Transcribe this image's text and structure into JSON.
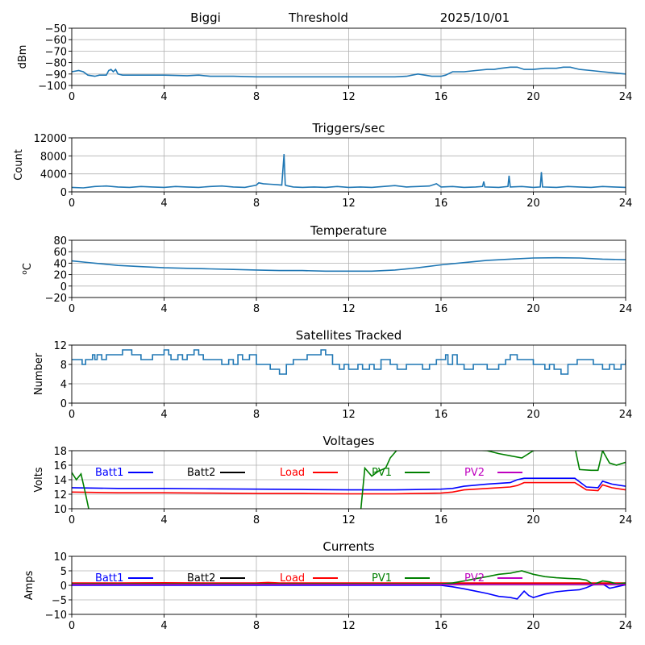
{
  "header": {
    "station": "Biggi",
    "mode": "Threshold",
    "date": "2025/10/01"
  },
  "colors": {
    "series_default": "#1f77b4",
    "Batt1": "#0000ff",
    "Batt2": "#000000",
    "Load": "#ff0000",
    "PV1": "#008000",
    "PV2": "#bf00bf",
    "grid": "#b0b0b0"
  },
  "chart_data": [
    {
      "id": "signal",
      "type": "line",
      "title": "",
      "xlabel": "",
      "ylabel": "dBm",
      "xlim": [
        0,
        24
      ],
      "ylim": [
        -100,
        -50
      ],
      "xticks": [
        0,
        4,
        8,
        12,
        16,
        20,
        24
      ],
      "yticks": [
        -100,
        -90,
        -80,
        -70,
        -60,
        -50
      ],
      "ytick_labels": [
        "−100",
        "−90",
        "−80",
        "−70",
        "−60",
        "−50"
      ],
      "grid": true,
      "series": [
        {
          "name": "dBm",
          "color": "#1f77b4",
          "x": [
            0,
            0.3,
            0.5,
            0.7,
            1.0,
            1.2,
            1.5,
            1.6,
            1.7,
            1.8,
            1.9,
            2.0,
            2.2,
            2.5,
            3,
            4,
            5,
            5.5,
            6,
            7,
            8,
            9,
            10,
            11,
            12,
            13,
            14,
            14.5,
            15,
            15.3,
            15.6,
            16,
            16.2,
            16.5,
            17,
            17.5,
            18,
            18.3,
            18.6,
            19,
            19.3,
            19.6,
            20,
            20.5,
            21,
            21.3,
            21.6,
            22,
            22.5,
            23,
            23.5,
            24
          ],
          "y": [
            -88,
            -87,
            -88,
            -91,
            -92,
            -91,
            -91,
            -87,
            -86,
            -88,
            -86,
            -90,
            -91,
            -91,
            -91,
            -91,
            -91.5,
            -91,
            -92,
            -92,
            -92.5,
            -92.5,
            -92.5,
            -92.5,
            -92.5,
            -92.5,
            -92.5,
            -92,
            -90,
            -91,
            -92,
            -92,
            -91,
            -88,
            -88,
            -87,
            -86,
            -86,
            -85,
            -84,
            -84,
            -86,
            -86,
            -85,
            -85,
            -84,
            -84,
            -86,
            -87,
            -88,
            -89,
            -90
          ]
        }
      ]
    },
    {
      "id": "triggers",
      "type": "line",
      "title": "Triggers/sec",
      "xlabel": "",
      "ylabel": "Count",
      "xlim": [
        0,
        24
      ],
      "ylim": [
        0,
        12000
      ],
      "xticks": [
        0,
        4,
        8,
        12,
        16,
        20,
        24
      ],
      "yticks": [
        0,
        4000,
        8000,
        12000
      ],
      "ytick_labels": [
        "0",
        "4000",
        "8000",
        "12000"
      ],
      "grid": true,
      "series": [
        {
          "name": "Count",
          "color": "#1f77b4",
          "x": [
            0,
            0.5,
            1,
            1.5,
            2,
            2.5,
            3,
            3.5,
            4,
            4.5,
            5,
            5.5,
            6,
            6.5,
            7,
            7.5,
            8,
            8.1,
            8.3,
            8.6,
            8.9,
            9.1,
            9.2,
            9.25,
            9.3,
            9.6,
            10,
            10.5,
            11,
            11.5,
            12,
            12.5,
            13,
            13.5,
            14,
            14.5,
            15,
            15.5,
            15.8,
            16,
            16.5,
            17,
            17.5,
            17.8,
            17.85,
            17.9,
            18.5,
            18.9,
            18.95,
            19,
            19.5,
            20,
            20.3,
            20.35,
            20.4,
            21,
            21.5,
            22,
            22.5,
            23,
            23.5,
            24
          ],
          "y": [
            1000,
            900,
            1200,
            1300,
            1100,
            1000,
            1200,
            1100,
            1000,
            1200,
            1100,
            1000,
            1200,
            1300,
            1100,
            1000,
            1500,
            2000,
            1800,
            1700,
            1600,
            1500,
            8400,
            1500,
            1400,
            1100,
            1000,
            1100,
            1000,
            1200,
            1000,
            1100,
            1000,
            1200,
            1400,
            1100,
            1200,
            1300,
            1800,
            1100,
            1200,
            1000,
            1100,
            1200,
            2300,
            1100,
            1000,
            1200,
            3600,
            1100,
            1200,
            1000,
            1100,
            4400,
            1100,
            1000,
            1200,
            1100,
            1000,
            1200,
            1100,
            1000
          ]
        }
      ]
    },
    {
      "id": "temperature",
      "type": "line",
      "title": "Temperature",
      "xlabel": "",
      "ylabel": "°C",
      "ylabel_html": "oC",
      "xlim": [
        0,
        24
      ],
      "ylim": [
        -20,
        80
      ],
      "xticks": [
        0,
        4,
        8,
        12,
        16,
        20,
        24
      ],
      "yticks": [
        -20,
        0,
        20,
        40,
        60,
        80
      ],
      "ytick_labels": [
        "−20",
        "0",
        "20",
        "40",
        "60",
        "80"
      ],
      "grid": true,
      "series": [
        {
          "name": "Temperature",
          "color": "#1f77b4",
          "x": [
            0,
            0.5,
            1,
            2,
            3,
            4,
            5,
            6,
            7,
            8,
            9,
            10,
            11,
            12,
            13,
            14,
            15,
            16,
            17,
            18,
            19,
            20,
            21,
            22,
            23,
            24
          ],
          "y": [
            44,
            42,
            40,
            36,
            34,
            32,
            31,
            30,
            29,
            28,
            27,
            27,
            26,
            26,
            26,
            28,
            32,
            37,
            41,
            45,
            47,
            49,
            49.5,
            49,
            47,
            46
          ]
        }
      ]
    },
    {
      "id": "satellites",
      "type": "line",
      "title": "Satellites Tracked",
      "xlabel": "",
      "ylabel": "Number",
      "xlim": [
        0,
        24
      ],
      "ylim": [
        0,
        12
      ],
      "xticks": [
        0,
        4,
        8,
        12,
        16,
        20,
        24
      ],
      "yticks": [
        0,
        4,
        8,
        12
      ],
      "ytick_labels": [
        "0",
        "4",
        "8",
        "12"
      ],
      "grid": true,
      "series": [
        {
          "name": "Satellites",
          "color": "#1f77b4",
          "step": true,
          "x": [
            0,
            0.3,
            0.45,
            0.6,
            0.9,
            1.0,
            1.1,
            1.3,
            1.5,
            1.8,
            2.2,
            2.6,
            3.0,
            3.5,
            3.5,
            4.0,
            4.2,
            4.3,
            4.6,
            4.8,
            5.0,
            5.3,
            5.5,
            5.7,
            6.0,
            6.5,
            6.8,
            7.0,
            7.2,
            7.4,
            7.7,
            8.0,
            8.3,
            8.6,
            8.8,
            9.0,
            9.3,
            9.6,
            9.8,
            10.2,
            10.4,
            10.8,
            11.0,
            11.3,
            11.6,
            11.8,
            12.0,
            12.4,
            12.6,
            12.9,
            13.1,
            13.4,
            13.8,
            14.1,
            14.5,
            14.8,
            15.2,
            15.5,
            15.8,
            16.2,
            16.3,
            16.5,
            16.7,
            17.0,
            17.4,
            17.6,
            18.0,
            18.5,
            18.8,
            19.0,
            19.3,
            19.6,
            20.0,
            20.5,
            20.7,
            20.9,
            21.2,
            21.5,
            21.9,
            22.2,
            22.6,
            22.8,
            23.0,
            23.3,
            23.5,
            23.8,
            24
          ],
          "y": [
            9,
            9,
            8,
            9,
            10,
            9,
            10,
            9,
            10,
            10,
            11,
            10,
            9,
            10,
            10,
            11,
            10,
            9,
            10,
            9,
            10,
            11,
            10,
            9,
            9,
            8,
            9,
            8,
            10,
            9,
            10,
            8,
            8,
            7,
            7,
            6,
            8,
            9,
            9,
            10,
            10,
            11,
            10,
            8,
            7,
            8,
            7,
            8,
            7,
            8,
            7,
            9,
            8,
            7,
            8,
            8,
            7,
            8,
            9,
            10,
            8,
            10,
            8,
            7,
            8,
            8,
            7,
            8,
            9,
            10,
            9,
            9,
            8,
            7,
            8,
            7,
            6,
            8,
            9,
            9,
            8,
            8,
            7,
            8,
            7,
            8,
            9
          ]
        }
      ]
    },
    {
      "id": "voltages",
      "type": "line",
      "title": "Voltages",
      "xlabel": "",
      "ylabel": "Volts",
      "xlim": [
        0,
        24
      ],
      "ylim": [
        10,
        18
      ],
      "xticks": [
        0,
        4,
        8,
        12,
        16,
        20,
        24
      ],
      "yticks": [
        10,
        12,
        14,
        16,
        18
      ],
      "ytick_labels": [
        "10",
        "12",
        "14",
        "16",
        "18"
      ],
      "grid": true,
      "legend": "top",
      "series": [
        {
          "name": "Batt1",
          "color": "#0000ff",
          "x": [
            0,
            2,
            4,
            6,
            8,
            10,
            12,
            14,
            16,
            16.5,
            17,
            18,
            19,
            19.3,
            19.6,
            20,
            21,
            21.8,
            22.3,
            22.8,
            23,
            23.4,
            24
          ],
          "y": [
            12.9,
            12.8,
            12.8,
            12.75,
            12.7,
            12.65,
            12.6,
            12.6,
            12.7,
            12.8,
            13.1,
            13.4,
            13.6,
            14.0,
            14.2,
            14.2,
            14.2,
            14.2,
            13.0,
            12.9,
            13.8,
            13.4,
            13.1
          ]
        },
        {
          "name": "Batt2",
          "color": "#000000",
          "x": [],
          "y": []
        },
        {
          "name": "Load",
          "color": "#ff0000",
          "x": [
            0,
            2,
            4,
            6,
            8,
            10,
            12,
            14,
            16,
            16.5,
            17,
            18,
            19,
            19.3,
            19.6,
            20,
            21,
            21.8,
            22.3,
            22.8,
            23,
            23.4,
            24
          ],
          "y": [
            12.3,
            12.2,
            12.2,
            12.15,
            12.1,
            12.1,
            12.05,
            12.05,
            12.15,
            12.3,
            12.6,
            12.8,
            13.0,
            13.2,
            13.6,
            13.6,
            13.6,
            13.6,
            12.6,
            12.5,
            13.3,
            12.9,
            12.6
          ]
        },
        {
          "name": "PV1",
          "color": "#008000",
          "x": [
            0,
            0.2,
            0.4,
            0.6,
            0.8,
            12.5,
            12.7,
            13.0,
            13.3,
            13.6,
            13.8,
            14.2,
            18.0,
            18.5,
            19.0,
            19.5,
            20.0,
            21.0,
            21.8,
            22.0,
            22.5,
            22.8,
            23.0,
            23.3,
            23.6,
            24
          ],
          "y": [
            15.0,
            14.0,
            14.8,
            12.0,
            9.0,
            9.0,
            15.6,
            14.5,
            15.2,
            15.6,
            17.0,
            18.5,
            18.0,
            17.6,
            17.3,
            17.0,
            18.0,
            18.5,
            18.5,
            15.4,
            15.3,
            15.3,
            18.0,
            16.3,
            16.0,
            16.4
          ]
        },
        {
          "name": "PV2",
          "color": "#bf00bf",
          "x": [],
          "y": []
        }
      ]
    },
    {
      "id": "currents",
      "type": "line",
      "title": "Currents",
      "xlabel": "",
      "ylabel": "Amps",
      "xlim": [
        0,
        24
      ],
      "ylim": [
        -10,
        10
      ],
      "xticks": [
        0,
        4,
        8,
        12,
        16,
        20,
        24
      ],
      "yticks": [
        -10,
        -5,
        0,
        5,
        10
      ],
      "ytick_labels": [
        "−10",
        "−5",
        "0",
        "5",
        "10"
      ],
      "grid": true,
      "legend": "top",
      "series": [
        {
          "name": "Batt1",
          "color": "#0000ff",
          "x": [
            0,
            2,
            4,
            6,
            8,
            10,
            12,
            14,
            16,
            16.5,
            17,
            17.5,
            18,
            18.5,
            19,
            19.3,
            19.6,
            19.8,
            20,
            20.5,
            21,
            21.5,
            22,
            22.3,
            22.6,
            23,
            23.3,
            23.6,
            24
          ],
          "y": [
            0,
            0,
            0,
            0,
            0,
            0,
            0,
            0,
            0,
            -0.5,
            -1.2,
            -2.0,
            -2.8,
            -3.8,
            -4.2,
            -4.7,
            -2.0,
            -3.5,
            -4.2,
            -3.0,
            -2.2,
            -1.8,
            -1.5,
            -0.8,
            0.2,
            0.5,
            -1.0,
            -0.5,
            0.2
          ]
        },
        {
          "name": "Batt2",
          "color": "#000000",
          "x": [
            0,
            24
          ],
          "y": [
            0.6,
            0.6
          ]
        },
        {
          "name": "Load",
          "color": "#ff0000",
          "x": [
            0,
            2,
            4,
            6,
            8,
            8.5,
            9,
            10,
            12,
            14,
            16,
            20,
            22,
            24
          ],
          "y": [
            0.8,
            0.8,
            0.9,
            0.8,
            0.8,
            1.0,
            0.8,
            0.8,
            0.8,
            0.8,
            0.8,
            0.8,
            0.8,
            0.8
          ]
        },
        {
          "name": "PV1",
          "color": "#008000",
          "x": [
            0,
            16,
            16.5,
            17,
            17.5,
            18,
            18.5,
            19,
            19.5,
            20,
            20.5,
            21,
            21.5,
            22,
            22.3,
            22.6,
            23,
            23.3,
            23.6,
            24
          ],
          "y": [
            0.5,
            0.5,
            0.8,
            1.5,
            2.3,
            3.0,
            3.8,
            4.2,
            5.0,
            3.8,
            3.0,
            2.6,
            2.4,
            2.2,
            1.8,
            0.3,
            1.5,
            1.2,
            0.5,
            0.8
          ]
        },
        {
          "name": "PV2",
          "color": "#bf00bf",
          "x": [
            0,
            24
          ],
          "y": [
            0.3,
            0.3
          ]
        }
      ]
    }
  ]
}
